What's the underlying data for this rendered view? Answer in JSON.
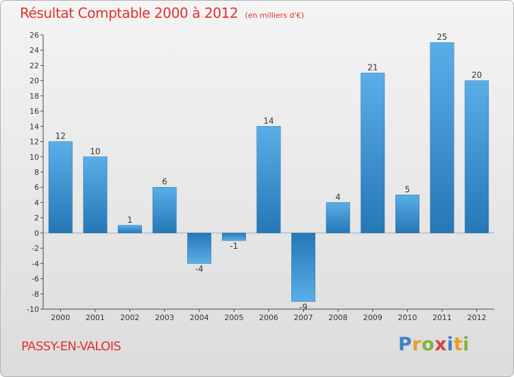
{
  "chart_data": {
    "type": "bar",
    "title": "Résultat Comptable 2000 à 2012",
    "subtitle": "(en milliers d'€)",
    "categories": [
      "2000",
      "2001",
      "2002",
      "2003",
      "2004",
      "2005",
      "2006",
      "2007",
      "2008",
      "2009",
      "2010",
      "2011",
      "2012"
    ],
    "values": [
      12,
      10,
      1,
      6,
      -4,
      -1,
      14,
      -9,
      4,
      21,
      5,
      25,
      20
    ],
    "data_labels": [
      "12",
      "10",
      "1",
      "6",
      "-4",
      "-1",
      "14",
      "-9",
      "4",
      "21",
      "5",
      "25",
      "20"
    ],
    "ylim": [
      -10,
      26
    ],
    "yticks": [
      -10,
      -8,
      -6,
      -4,
      -2,
      0,
      2,
      4,
      6,
      8,
      10,
      12,
      14,
      16,
      18,
      20,
      22,
      24,
      26
    ],
    "xlabel": "",
    "ylabel": "",
    "grid": false,
    "legend": "none",
    "bar_color_light": "#5aaee8",
    "bar_color_dark": "#2577b6"
  },
  "location": "PASSY-EN-VALOIS",
  "brand": {
    "letters": [
      "P",
      "r",
      "o",
      "x",
      "i",
      "t",
      "i"
    ],
    "colors": [
      "#3f7fc8",
      "#e8a020",
      "#7fb43a",
      "#d94040",
      "#3f7fc8",
      "#e8a020",
      "#7fb43a"
    ]
  }
}
